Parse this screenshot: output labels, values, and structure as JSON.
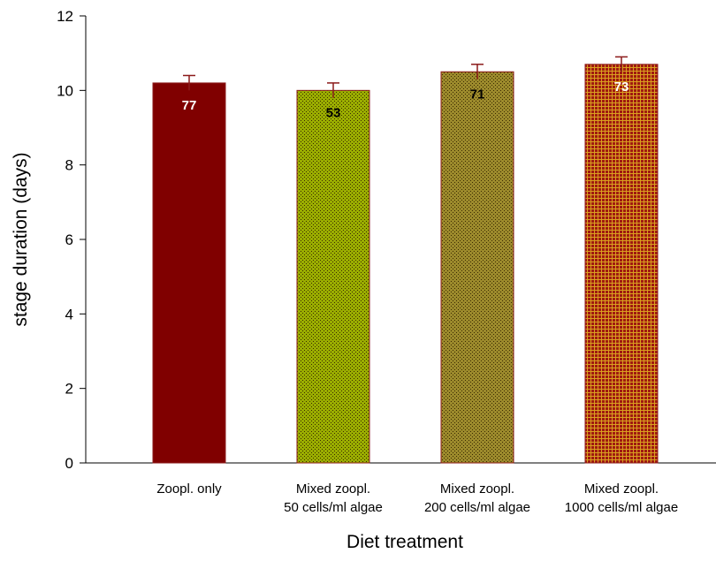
{
  "chart_data": {
    "type": "bar",
    "x_label": "Diet treatment",
    "y_label": "stage duration (days)",
    "categories": [
      [
        "Zoopl. only"
      ],
      [
        "Mixed zoopl.",
        "50 cells/ml algae"
      ],
      [
        "Mixed zoopl.",
        "200 cells/ml algae"
      ],
      [
        "Mixed zoopl.",
        "1000 cells/ml algae"
      ]
    ],
    "values": [
      10.2,
      10.0,
      10.5,
      10.7
    ],
    "errors": [
      0.2,
      0.2,
      0.2,
      0.2
    ],
    "sample_sizes": [
      77,
      53,
      71,
      73
    ],
    "colors": [
      "#800000",
      "#9aad00",
      "#9c8a2c",
      "#a01a10"
    ],
    "fill_patterns": [
      "solid",
      "dots",
      "dots",
      "grid"
    ],
    "label_colors": [
      "#ffffff",
      "#000000",
      "#000000",
      "#ffffff"
    ],
    "error_color": "#8b1a1a",
    "ylim": [
      0,
      12
    ],
    "yticks": [
      0,
      2,
      4,
      6,
      8,
      10,
      12
    ]
  }
}
